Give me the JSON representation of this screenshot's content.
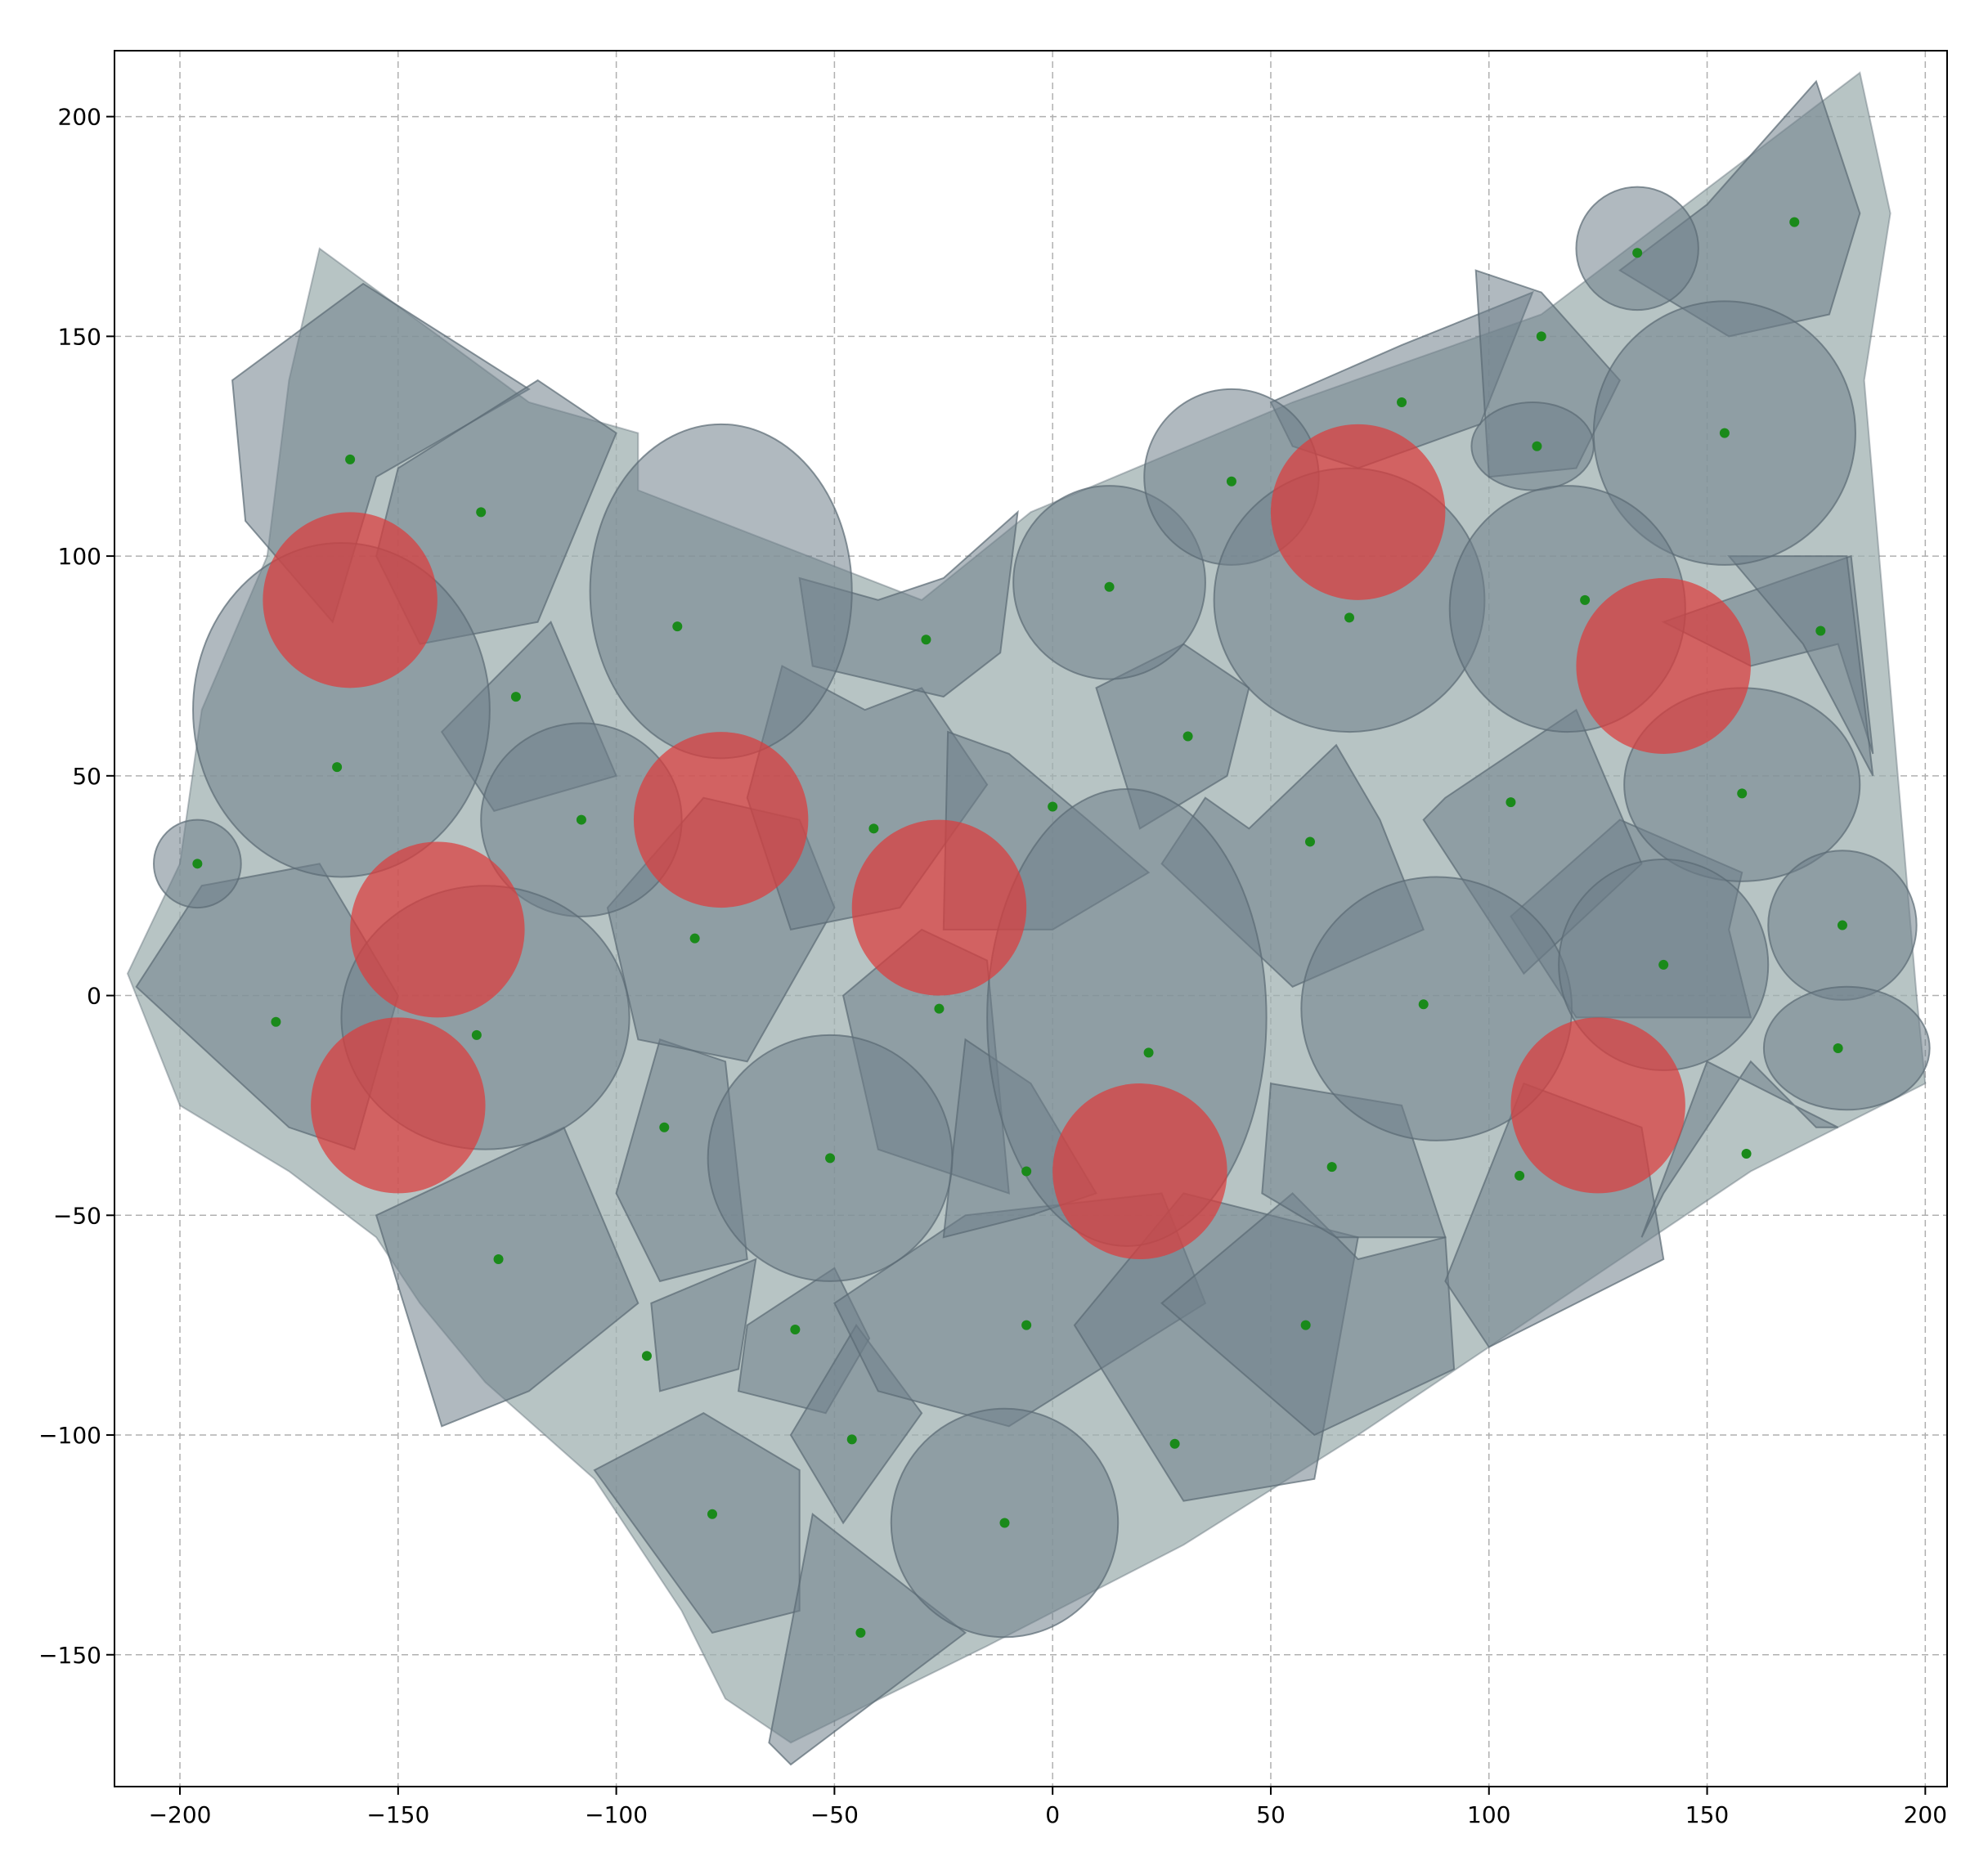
{
  "chart_data": {
    "type": "scatter",
    "title": "",
    "xlabel": "",
    "ylabel": "",
    "xlim": [
      -215,
      205
    ],
    "ylim": [
      -180,
      215
    ],
    "grid": true,
    "x_ticks": [
      -200,
      -150,
      -100,
      -50,
      0,
      50,
      100,
      150,
      200
    ],
    "y_ticks": [
      -150,
      -100,
      -50,
      0,
      50,
      100,
      150,
      200
    ],
    "x_tick_labels": [
      "−200",
      "−150",
      "−100",
      "−50",
      "0",
      "50",
      "100",
      "150",
      "200"
    ],
    "y_tick_labels": [
      "−150",
      "−100",
      "−50",
      "0",
      "50",
      "100",
      "150",
      "200"
    ],
    "colors": {
      "hull": "#9fb0b0",
      "piece_fill": "#6f7f8a",
      "piece_stroke": "#5a6a74",
      "red_circle": "#dc3c3c",
      "point": "#1a8a1a",
      "grid": "#b0b0b0"
    },
    "hull_outline": [
      [
        -168,
        170
      ],
      [
        -120,
        135
      ],
      [
        -95,
        128
      ],
      [
        -95,
        115
      ],
      [
        -30,
        90
      ],
      [
        -5,
        110
      ],
      [
        55,
        135
      ],
      [
        112,
        155
      ],
      [
        185,
        210
      ],
      [
        192,
        178
      ],
      [
        186,
        140
      ],
      [
        198,
        0
      ],
      [
        200,
        -20
      ],
      [
        160,
        -40
      ],
      [
        70,
        -100
      ],
      [
        30,
        -125
      ],
      [
        -15,
        -148
      ],
      [
        -60,
        -170
      ],
      [
        -75,
        -160
      ],
      [
        -85,
        -140
      ],
      [
        -105,
        -110
      ],
      [
        -130,
        -88
      ],
      [
        -145,
        -70
      ],
      [
        -155,
        -55
      ],
      [
        -175,
        -40
      ],
      [
        -200,
        -25
      ],
      [
        -212,
        5
      ],
      [
        -200,
        30
      ],
      [
        -195,
        65
      ],
      [
        -180,
        100
      ],
      [
        -175,
        140
      ]
    ],
    "circles": [
      {
        "cx": -196,
        "cy": 30,
        "rx": 10,
        "ry": 10
      },
      {
        "cx": -163,
        "cy": 65,
        "rx": 34,
        "ry": 38
      },
      {
        "cx": -108,
        "cy": 40,
        "rx": 23,
        "ry": 22
      },
      {
        "cx": -130,
        "cy": -5,
        "rx": 33,
        "ry": 30
      },
      {
        "cx": -76,
        "cy": 92,
        "rx": 30,
        "ry": 38
      },
      {
        "cx": -51,
        "cy": -37,
        "rx": 28,
        "ry": 28
      },
      {
        "cx": 13,
        "cy": 94,
        "rx": 22,
        "ry": 22
      },
      {
        "cx": 41,
        "cy": 118,
        "rx": 20,
        "ry": 20
      },
      {
        "cx": 68,
        "cy": 90,
        "rx": 31,
        "ry": 30
      },
      {
        "cx": 17,
        "cy": -5,
        "rx": 32,
        "ry": 52
      },
      {
        "cx": 88,
        "cy": -3,
        "rx": 31,
        "ry": 30
      },
      {
        "cx": -11,
        "cy": -120,
        "rx": 26,
        "ry": 26
      },
      {
        "cx": 110,
        "cy": 125,
        "rx": 14,
        "ry": 10
      },
      {
        "cx": 134,
        "cy": 170,
        "rx": 14,
        "ry": 14
      },
      {
        "cx": 154,
        "cy": 128,
        "rx": 30,
        "ry": 30
      },
      {
        "cx": 118,
        "cy": 88,
        "rx": 27,
        "ry": 28
      },
      {
        "cx": 158,
        "cy": 48,
        "rx": 27,
        "ry": 22
      },
      {
        "cx": 140,
        "cy": 7,
        "rx": 24,
        "ry": 24
      },
      {
        "cx": 181,
        "cy": 16,
        "rx": 17,
        "ry": 17
      },
      {
        "cx": 182,
        "cy": -12,
        "rx": 19,
        "ry": 14
      }
    ],
    "polygons": [
      [
        [
          -188,
          140
        ],
        [
          -158,
          162
        ],
        [
          -120,
          138
        ],
        [
          -155,
          118
        ],
        [
          -165,
          85
        ],
        [
          -185,
          108
        ]
      ],
      [
        [
          -150,
          120
        ],
        [
          -118,
          140
        ],
        [
          -100,
          128
        ],
        [
          -118,
          85
        ],
        [
          -145,
          80
        ],
        [
          -155,
          100
        ]
      ],
      [
        [
          -140,
          60
        ],
        [
          -115,
          85
        ],
        [
          -100,
          50
        ],
        [
          -128,
          42
        ]
      ],
      [
        [
          -210,
          2
        ],
        [
          -195,
          25
        ],
        [
          -168,
          30
        ],
        [
          -150,
          0
        ],
        [
          -160,
          -35
        ],
        [
          -175,
          -30
        ]
      ],
      [
        [
          -155,
          -50
        ],
        [
          -112,
          -30
        ],
        [
          -95,
          -70
        ],
        [
          -120,
          -90
        ],
        [
          -140,
          -98
        ]
      ],
      [
        [
          -100,
          -45
        ],
        [
          -90,
          -10
        ],
        [
          -75,
          -15
        ],
        [
          -70,
          -60
        ],
        [
          -90,
          -65
        ]
      ],
      [
        [
          -102,
          20
        ],
        [
          -80,
          45
        ],
        [
          -58,
          40
        ],
        [
          -50,
          20
        ],
        [
          -70,
          -15
        ],
        [
          -95,
          -10
        ]
      ],
      [
        [
          -62,
          75
        ],
        [
          -43,
          65
        ],
        [
          -30,
          70
        ],
        [
          -15,
          48
        ],
        [
          -35,
          20
        ],
        [
          -60,
          15
        ],
        [
          -70,
          45
        ]
      ],
      [
        [
          -58,
          95
        ],
        [
          -40,
          90
        ],
        [
          -25,
          95
        ],
        [
          -8,
          110
        ],
        [
          -12,
          78
        ],
        [
          -25,
          68
        ],
        [
          -55,
          75
        ]
      ],
      [
        [
          -24,
          60
        ],
        [
          -10,
          55
        ],
        [
          8,
          40
        ],
        [
          22,
          28
        ],
        [
          0,
          15
        ],
        [
          -25,
          15
        ]
      ],
      [
        [
          -48,
          0
        ],
        [
          -30,
          15
        ],
        [
          -15,
          8
        ],
        [
          -10,
          -45
        ],
        [
          -40,
          -35
        ]
      ],
      [
        [
          -92,
          -70
        ],
        [
          -68,
          -60
        ],
        [
          -72,
          -85
        ],
        [
          -90,
          -90
        ]
      ],
      [
        [
          -70,
          -75
        ],
        [
          -50,
          -62
        ],
        [
          -42,
          -78
        ],
        [
          -52,
          -95
        ],
        [
          -72,
          -90
        ]
      ],
      [
        [
          -60,
          -100
        ],
        [
          -45,
          -75
        ],
        [
          -30,
          -95
        ],
        [
          -48,
          -120
        ]
      ],
      [
        [
          -105,
          -108
        ],
        [
          -80,
          -95
        ],
        [
          -58,
          -108
        ],
        [
          -58,
          -140
        ],
        [
          -78,
          -145
        ]
      ],
      [
        [
          -65,
          -170
        ],
        [
          -55,
          -118
        ],
        [
          -20,
          -145
        ],
        [
          -60,
          -175
        ]
      ],
      [
        [
          -50,
          -70
        ],
        [
          -20,
          -50
        ],
        [
          25,
          -45
        ],
        [
          35,
          -70
        ],
        [
          -10,
          -98
        ],
        [
          -40,
          -90
        ]
      ],
      [
        [
          -25,
          -55
        ],
        [
          -5,
          -50
        ],
        [
          10,
          -45
        ],
        [
          -5,
          -20
        ],
        [
          -20,
          -10
        ]
      ],
      [
        [
          5,
          -75
        ],
        [
          30,
          -45
        ],
        [
          70,
          -55
        ],
        [
          60,
          -110
        ],
        [
          30,
          -115
        ]
      ],
      [
        [
          55,
          -45
        ],
        [
          70,
          -60
        ],
        [
          90,
          -55
        ],
        [
          92,
          -85
        ],
        [
          60,
          -100
        ],
        [
          25,
          -70
        ]
      ],
      [
        [
          50,
          -20
        ],
        [
          80,
          -25
        ],
        [
          90,
          -55
        ],
        [
          65,
          -55
        ],
        [
          48,
          -45
        ]
      ],
      [
        [
          35,
          45
        ],
        [
          45,
          38
        ],
        [
          65,
          57
        ],
        [
          75,
          40
        ],
        [
          85,
          15
        ],
        [
          55,
          2
        ],
        [
          25,
          30
        ]
      ],
      [
        [
          10,
          70
        ],
        [
          30,
          80
        ],
        [
          45,
          70
        ],
        [
          40,
          50
        ],
        [
          20,
          38
        ]
      ],
      [
        [
          50,
          135
        ],
        [
          80,
          148
        ],
        [
          110,
          160
        ],
        [
          98,
          130
        ],
        [
          70,
          120
        ],
        [
          55,
          125
        ]
      ],
      [
        [
          97,
          165
        ],
        [
          112,
          160
        ],
        [
          130,
          140
        ],
        [
          120,
          120
        ],
        [
          100,
          118
        ]
      ],
      [
        [
          130,
          165
        ],
        [
          150,
          180
        ],
        [
          175,
          208
        ],
        [
          185,
          178
        ],
        [
          178,
          155
        ],
        [
          155,
          150
        ]
      ],
      [
        [
          140,
          85
        ],
        [
          160,
          75
        ],
        [
          180,
          80
        ],
        [
          188,
          55
        ],
        [
          183,
          100
        ]
      ],
      [
        [
          155,
          100
        ],
        [
          172,
          80
        ],
        [
          188,
          50
        ],
        [
          182,
          100
        ]
      ],
      [
        [
          130,
          40
        ],
        [
          158,
          28
        ],
        [
          155,
          15
        ],
        [
          160,
          -5
        ],
        [
          120,
          -5
        ],
        [
          105,
          18
        ]
      ],
      [
        [
          90,
          45
        ],
        [
          120,
          65
        ],
        [
          135,
          30
        ],
        [
          108,
          5
        ],
        [
          85,
          40
        ]
      ],
      [
        [
          108,
          -20
        ],
        [
          135,
          -30
        ],
        [
          140,
          -60
        ],
        [
          100,
          -80
        ],
        [
          90,
          -65
        ]
      ],
      [
        [
          140,
          -45
        ],
        [
          160,
          -15
        ],
        [
          175,
          -30
        ],
        [
          180,
          -30
        ],
        [
          150,
          -15
        ],
        [
          135,
          -55
        ]
      ]
    ],
    "red_circles": [
      {
        "cx": -161,
        "cy": 90,
        "r": 20
      },
      {
        "cx": -141,
        "cy": 15,
        "r": 20
      },
      {
        "cx": -150,
        "cy": -25,
        "r": 20
      },
      {
        "cx": -76,
        "cy": 40,
        "r": 20
      },
      {
        "cx": -26,
        "cy": 20,
        "r": 20
      },
      {
        "cx": 20,
        "cy": -40,
        "r": 20
      },
      {
        "cx": 70,
        "cy": 110,
        "r": 20
      },
      {
        "cx": 140,
        "cy": 75,
        "r": 20
      },
      {
        "cx": 125,
        "cy": -25,
        "r": 20
      }
    ],
    "points": [
      [
        -161,
        122
      ],
      [
        -131,
        110
      ],
      [
        -123,
        68
      ],
      [
        -164,
        52
      ],
      [
        -196,
        30
      ],
      [
        -108,
        40
      ],
      [
        -178,
        -6
      ],
      [
        -132,
        -9
      ],
      [
        -82,
        13
      ],
      [
        -86,
        84
      ],
      [
        -29,
        81
      ],
      [
        -41,
        38
      ],
      [
        0,
        43
      ],
      [
        13,
        93
      ],
      [
        41,
        117
      ],
      [
        80,
        135
      ],
      [
        68,
        86
      ],
      [
        31,
        59
      ],
      [
        59,
        35
      ],
      [
        -26,
        -3
      ],
      [
        22,
        -13
      ],
      [
        85,
        -2
      ],
      [
        -89,
        -30
      ],
      [
        -51,
        -37
      ],
      [
        -6,
        -40
      ],
      [
        64,
        -39
      ],
      [
        107,
        -41
      ],
      [
        -127,
        -60
      ],
      [
        -93,
        -82
      ],
      [
        -59,
        -76
      ],
      [
        -6,
        -75
      ],
      [
        58,
        -75
      ],
      [
        -46,
        -101
      ],
      [
        28,
        -102
      ],
      [
        -78,
        -118
      ],
      [
        -11,
        -120
      ],
      [
        -44,
        -145
      ],
      [
        112,
        150
      ],
      [
        134,
        169
      ],
      [
        170,
        176
      ],
      [
        111,
        125
      ],
      [
        154,
        128
      ],
      [
        122,
        90
      ],
      [
        176,
        83
      ],
      [
        105,
        44
      ],
      [
        158,
        46
      ],
      [
        140,
        7
      ],
      [
        181,
        16
      ],
      [
        180,
        -12
      ],
      [
        159,
        -36
      ]
    ]
  }
}
